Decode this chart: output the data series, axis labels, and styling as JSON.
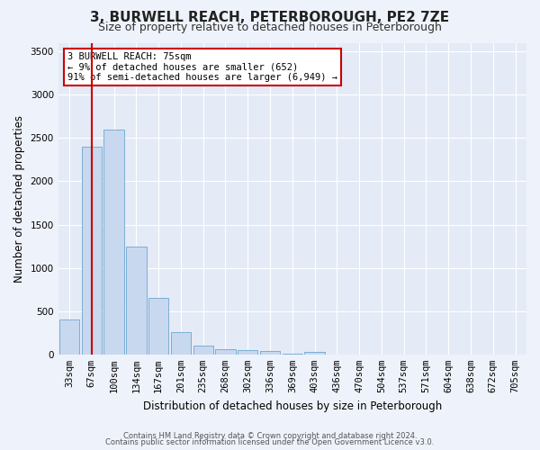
{
  "title": "3, BURWELL REACH, PETERBOROUGH, PE2 7ZE",
  "subtitle": "Size of property relative to detached houses in Peterborough",
  "xlabel": "Distribution of detached houses by size in Peterborough",
  "ylabel": "Number of detached properties",
  "footer_line1": "Contains HM Land Registry data © Crown copyright and database right 2024.",
  "footer_line2": "Contains public sector information licensed under the Open Government Licence v3.0.",
  "annotation_line1": "3 BURWELL REACH: 75sqm",
  "annotation_line2": "← 9% of detached houses are smaller (652)",
  "annotation_line3": "91% of semi-detached houses are larger (6,949) →",
  "bar_color": "#c8d8ee",
  "bar_edge_color": "#7bafd4",
  "highlight_color": "#cc0000",
  "highlight_bar_index": 1,
  "categories": [
    "33sqm",
    "67sqm",
    "100sqm",
    "134sqm",
    "167sqm",
    "201sqm",
    "235sqm",
    "268sqm",
    "302sqm",
    "336sqm",
    "369sqm",
    "403sqm",
    "436sqm",
    "470sqm",
    "504sqm",
    "537sqm",
    "571sqm",
    "604sqm",
    "638sqm",
    "672sqm",
    "705sqm"
  ],
  "values": [
    400,
    2400,
    2600,
    1250,
    650,
    260,
    100,
    60,
    55,
    40,
    5,
    30,
    0,
    0,
    0,
    0,
    0,
    0,
    0,
    0,
    0
  ],
  "ylim": [
    0,
    3600
  ],
  "yticks": [
    0,
    500,
    1000,
    1500,
    2000,
    2500,
    3000,
    3500
  ],
  "background_color": "#eef2fa",
  "plot_bg_color": "#e4eaf6",
  "grid_color": "#ffffff",
  "title_fontsize": 11,
  "subtitle_fontsize": 9,
  "axis_label_fontsize": 8.5,
  "tick_fontsize": 7.5,
  "footer_fontsize": 6
}
